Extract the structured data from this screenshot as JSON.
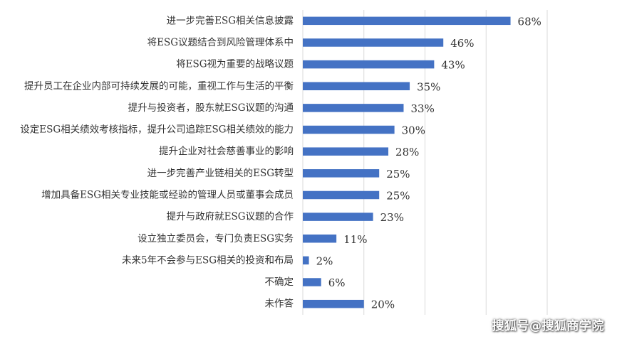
{
  "chart_data": {
    "type": "bar",
    "orientation": "horizontal",
    "categories": [
      "进一步完善ESG相关信息披露",
      "将ESG议题结合到风险管理体系中",
      "将ESG视为重要的战略议题",
      "提升员工在企业内部可持续发展的可能，重视工作与生活的平衡",
      "提升与投资者，股东就ESG议题的沟通",
      "设定ESG相关绩效考核指标，提升公司追踪ESG相关绩效的能力",
      "提升企业对社会慈善事业的影响",
      "进一步完善产业链相关的ESG转型",
      "增加具备ESG相关专业技能或经验的管理人员或董事会成员",
      "提升与政府就ESG议题的合作",
      "设立独立委员会，专门负责ESG实务",
      "未来5年不会参与ESG相关的投资和布局",
      "不确定",
      "未作答"
    ],
    "values": [
      68,
      46,
      43,
      35,
      33,
      30,
      28,
      25,
      25,
      23,
      11,
      2,
      6,
      20
    ],
    "value_labels": [
      "68%",
      "46%",
      "43%",
      "35%",
      "33%",
      "30%",
      "28%",
      "25%",
      "25%",
      "23%",
      "11%",
      "2%",
      "6%",
      "20%"
    ],
    "xlim": [
      0,
      80
    ],
    "grid": true,
    "bar_color": "#4472c4"
  },
  "watermark": "搜狐号@搜狐商学院"
}
